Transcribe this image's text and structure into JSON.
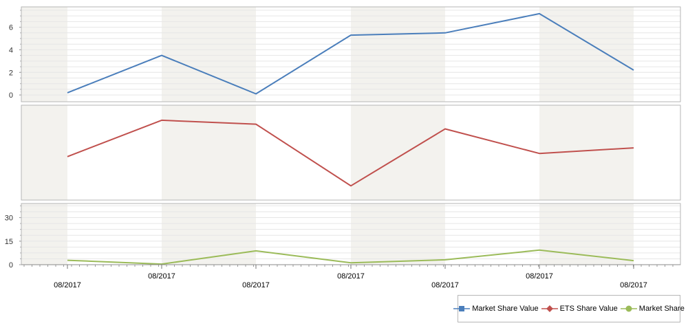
{
  "colors": {
    "market_share_value": "#4a7ebb",
    "ets_share_value": "#c0504d",
    "market_share": "#9bbb59",
    "band": "#f3f2ee",
    "border": "#b6b6b6",
    "grid": "#e6e6e6"
  },
  "chart_data": [
    {
      "type": "line",
      "x": [
        "08/2017",
        "08/2017",
        "08/2017",
        "08/2017",
        "08/2017",
        "08/2017",
        "08/2017"
      ],
      "series": [
        {
          "name": "Market Share Value",
          "values": [
            0.2,
            3.5,
            0.1,
            5.3,
            5.5,
            7.2,
            2.2
          ]
        }
      ],
      "ylim": [
        -0.6,
        7.8
      ],
      "yticks": [
        "0",
        "2",
        "4",
        "6"
      ],
      "ytick_values": [
        0,
        2,
        4,
        6
      ],
      "grid": true
    },
    {
      "type": "line",
      "x": [
        "08/2017",
        "08/2017",
        "08/2017",
        "08/2017",
        "08/2017",
        "08/2017",
        "08/2017"
      ],
      "series": [
        {
          "name": "ETS Share Value",
          "values": [
            0.45,
            0.91,
            0.86,
            0.08,
            0.8,
            0.49,
            0.56
          ]
        }
      ],
      "ylim": [
        -0.1,
        1.1
      ],
      "yticks": [],
      "grid": false
    },
    {
      "type": "line",
      "x": [
        "08/2017",
        "08/2017",
        "08/2017",
        "08/2017",
        "08/2017",
        "08/2017",
        "08/2017"
      ],
      "series": [
        {
          "name": "Market Share",
          "values": [
            2.8,
            0.4,
            8.8,
            1.2,
            3.1,
            9.3,
            2.6
          ]
        }
      ],
      "ylim": [
        0,
        39
      ],
      "yticks": [
        "0",
        "15",
        "30"
      ],
      "ytick_values": [
        0,
        15,
        30
      ],
      "grid": true
    }
  ],
  "x_labels": [
    "08/2017",
    "08/2017",
    "08/2017",
    "08/2017",
    "08/2017",
    "08/2017",
    "08/2017"
  ],
  "legend": {
    "items": [
      {
        "label": "Market Share Value",
        "marker": "square",
        "color_key": "market_share_value"
      },
      {
        "label": "ETS Share Value",
        "marker": "diamond",
        "color_key": "ets_share_value"
      },
      {
        "label": "Market Share",
        "marker": "circle",
        "color_key": "market_share"
      }
    ],
    "position": "bottom-right"
  }
}
